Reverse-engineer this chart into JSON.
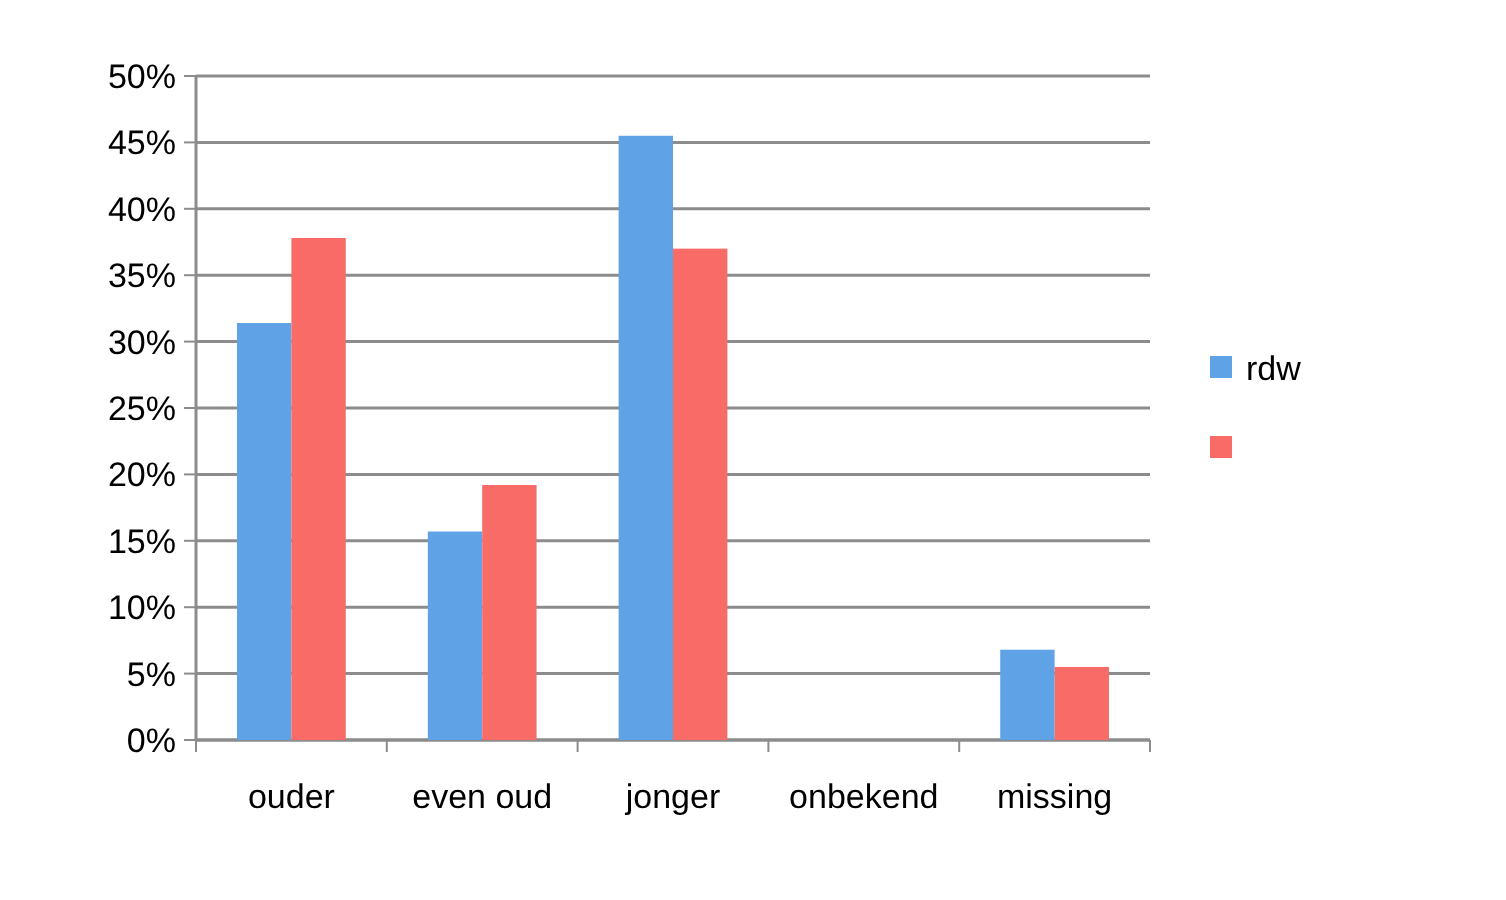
{
  "chart_data": {
    "type": "bar",
    "categories": [
      "ouder",
      "even oud",
      "jonger",
      "onbekend",
      "missing"
    ],
    "series": [
      {
        "name": "rdw",
        "color": "#5fa3e6",
        "values": [
          31.4,
          15.7,
          45.5,
          0,
          6.8
        ]
      },
      {
        "color": "#f86b66",
        "values": [
          37.8,
          19.2,
          37.0,
          0,
          5.5
        ]
      }
    ],
    "ylim": [
      0,
      50
    ],
    "yticks": [
      {
        "value": 0,
        "label": "0%"
      },
      {
        "value": 5,
        "label": "5%"
      },
      {
        "value": 10,
        "label": "10%"
      },
      {
        "value": 15,
        "label": "15%"
      },
      {
        "value": 20,
        "label": "20%"
      },
      {
        "value": 25,
        "label": "25%"
      },
      {
        "value": 30,
        "label": "30%"
      },
      {
        "value": 35,
        "label": "35%"
      },
      {
        "value": 40,
        "label": "40%"
      },
      {
        "value": 45,
        "label": "45%"
      },
      {
        "value": 50,
        "label": "50%"
      }
    ],
    "grid": "y",
    "legend": "right"
  }
}
